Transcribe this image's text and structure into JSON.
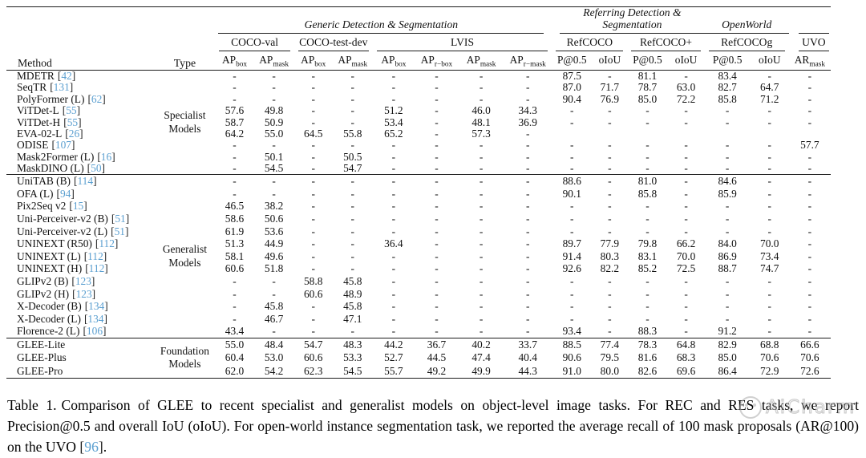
{
  "fmt": {
    "cite_open": "[",
    "cite_close": "]"
  },
  "colors": {
    "cite_link": "#5b9fd0",
    "rule": "#1c1c1c",
    "background": "#ffffff"
  },
  "table": {
    "header": {
      "method": "Method",
      "type": "Type",
      "groups": [
        {
          "label": "Generic Detection & Segmentation"
        },
        {
          "label": "Referring Detection & Segmentation"
        },
        {
          "label": "OpenWorld"
        }
      ],
      "datasets": [
        "COCO-val",
        "COCO-test-dev",
        "LVIS",
        "RefCOCO",
        "RefCOCO+",
        "RefCOCOg",
        "UVO"
      ],
      "metrics": [
        {
          "main": "AP",
          "sub": "box"
        },
        {
          "main": "AP",
          "sub": "mask"
        },
        {
          "main": "AP",
          "sub": "box"
        },
        {
          "main": "AP",
          "sub": "mask"
        },
        {
          "main": "AP",
          "sub": "box"
        },
        {
          "main": "AP",
          "sub": "r−box"
        },
        {
          "main": "AP",
          "sub": "mask"
        },
        {
          "main": "AP",
          "sub": "r−mask"
        },
        {
          "main": "P@0.5",
          "sub": ""
        },
        {
          "main": "oIoU",
          "sub": ""
        },
        {
          "main": "P@0.5",
          "sub": ""
        },
        {
          "main": "oIoU",
          "sub": ""
        },
        {
          "main": "P@0.5",
          "sub": ""
        },
        {
          "main": "oIoU",
          "sub": ""
        },
        {
          "main": "AR",
          "sub": "mask"
        }
      ]
    },
    "blocks": [
      {
        "type_label": "Specialist\nModels",
        "rows": [
          {
            "method": "MDETR",
            "cite": "42",
            "values": [
              "-",
              "-",
              "-",
              "-",
              "-",
              "-",
              "-",
              "-",
              "87.5",
              "-",
              "81.1",
              "-",
              "83.4",
              "-",
              "-"
            ]
          },
          {
            "method": "SeqTR",
            "cite": "131",
            "values": [
              "-",
              "-",
              "-",
              "-",
              "-",
              "-",
              "-",
              "-",
              "87.0",
              "71.7",
              "78.7",
              "63.0",
              "82.7",
              "64.7",
              "-"
            ]
          },
          {
            "method": "PolyFormer (L)",
            "cite": "62",
            "values": [
              "-",
              "-",
              "-",
              "-",
              "-",
              "-",
              "-",
              "-",
              "90.4",
              "76.9",
              "85.0",
              "72.2",
              "85.8",
              "71.2",
              "-"
            ]
          },
          {
            "method": "ViTDet-L",
            "cite": "55",
            "values": [
              "57.6",
              "49.8",
              "-",
              "-",
              "51.2",
              "-",
              "46.0",
              "34.3",
              "-",
              "-",
              "-",
              "-",
              "-",
              "-",
              "-"
            ]
          },
          {
            "method": "ViTDet-H",
            "cite": "55",
            "values": [
              "58.7",
              "50.9",
              "-",
              "-",
              "53.4",
              "-",
              "48.1",
              "36.9",
              "-",
              "-",
              "-",
              "-",
              "-",
              "-",
              "-"
            ]
          },
          {
            "method": "EVA-02-L",
            "cite": "26",
            "values": [
              "64.2",
              "55.0",
              "64.5",
              "55.8",
              "65.2",
              "-",
              "57.3",
              "-",
              "",
              "",
              "",
              "",
              "",
              "",
              ""
            ]
          },
          {
            "method": "ODISE",
            "cite": "107",
            "values": [
              "-",
              "-",
              "-",
              "-",
              "-",
              "-",
              "-",
              "-",
              "-",
              "-",
              "-",
              "-",
              "-",
              "-",
              "57.7"
            ]
          },
          {
            "method": "Mask2Former (L)",
            "cite": "16",
            "values": [
              "-",
              "50.1",
              "-",
              "50.5",
              "-",
              "-",
              "-",
              "-",
              "-",
              "-",
              "-",
              "-",
              "-",
              "-",
              "-"
            ]
          },
          {
            "method": "MaskDINO (L)",
            "cite": "50",
            "values": [
              "-",
              "54.5",
              "-",
              "54.7",
              "-",
              "-",
              "-",
              "-",
              "-",
              "-",
              "-",
              "-",
              "-",
              "-",
              "-"
            ]
          }
        ]
      },
      {
        "type_label": "Generalist\nModels",
        "rows": [
          {
            "method": "UniTAB (B)",
            "cite": "114",
            "values": [
              "-",
              "-",
              "-",
              "-",
              "-",
              "-",
              "-",
              "-",
              "88.6",
              "-",
              "81.0",
              "-",
              "84.6",
              "-",
              "-"
            ]
          },
          {
            "method": "OFA (L)",
            "cite": "94",
            "values": [
              "-",
              "-",
              "-",
              "-",
              "-",
              "-",
              "-",
              "-",
              "90.1",
              "-",
              "85.8",
              "-",
              "85.9",
              "-",
              "-"
            ]
          },
          {
            "method": "Pix2Seq v2",
            "cite": "15",
            "values": [
              "46.5",
              "38.2",
              "-",
              "-",
              "-",
              "-",
              "-",
              "-",
              "-",
              "-",
              "-",
              "-",
              "-",
              "-",
              "-"
            ]
          },
          {
            "method": "Uni-Perceiver-v2 (B)",
            "cite": "51",
            "values": [
              "58.6",
              "50.6",
              "-",
              "-",
              "-",
              "-",
              "-",
              "-",
              "-",
              "-",
              "-",
              "-",
              "-",
              "-",
              "-"
            ]
          },
          {
            "method": "Uni-Perceiver-v2 (L)",
            "cite": "51",
            "values": [
              "61.9",
              "53.6",
              "-",
              "-",
              "-",
              "-",
              "-",
              "-",
              "-",
              "-",
              "-",
              "-",
              "-",
              "-",
              "-"
            ]
          },
          {
            "method": "UNINEXT (R50)",
            "cite": "112",
            "values": [
              "51.3",
              "44.9",
              "-",
              "-",
              "36.4",
              "-",
              "-",
              "-",
              "89.7",
              "77.9",
              "79.8",
              "66.2",
              "84.0",
              "70.0",
              "-"
            ]
          },
          {
            "method": "UNINEXT (L)",
            "cite": "112",
            "values": [
              "58.1",
              "49.6",
              "-",
              "-",
              "-",
              "-",
              "-",
              "-",
              "91.4",
              "80.3",
              "83.1",
              "70.0",
              "86.9",
              "73.4",
              "-"
            ]
          },
          {
            "method": "UNINEXT (H)",
            "cite": "112",
            "values": [
              "60.6",
              "51.8",
              "-",
              "-",
              "-",
              "-",
              "-",
              "-",
              "92.6",
              "82.2",
              "85.2",
              "72.5",
              "88.7",
              "74.7",
              "-"
            ]
          },
          {
            "method": "GLIPv2 (B)",
            "cite": "123",
            "values": [
              "-",
              "-",
              "58.8",
              "45.8",
              "-",
              "-",
              "-",
              "-",
              "-",
              "-",
              "-",
              "-",
              "-",
              "-",
              "-"
            ]
          },
          {
            "method": "GLIPv2 (H)",
            "cite": "123",
            "values": [
              "-",
              "-",
              "60.6",
              "48.9",
              "-",
              "-",
              "-",
              "-",
              "-",
              "-",
              "-",
              "-",
              "-",
              "-",
              "-"
            ]
          },
          {
            "method": "X-Decoder (B)",
            "cite": "134",
            "values": [
              "-",
              "45.8",
              "-",
              "45.8",
              "-",
              "-",
              "-",
              "-",
              "-",
              "-",
              "-",
              "-",
              "-",
              "-",
              "-"
            ]
          },
          {
            "method": "X-Decoder (L)",
            "cite": "134",
            "values": [
              "-",
              "46.7",
              "-",
              "47.1",
              "-",
              "-",
              "-",
              "-",
              "-",
              "-",
              "-",
              "-",
              "-",
              "-",
              "-"
            ]
          },
          {
            "method": "Florence-2 (L)",
            "cite": "106",
            "values": [
              "43.4",
              "-",
              "-",
              "-",
              "-",
              "-",
              "-",
              "-",
              "93.4",
              "-",
              "88.3",
              "-",
              "91.2",
              "-",
              "-"
            ]
          }
        ]
      },
      {
        "type_label": "Foundation\nModels",
        "rows": [
          {
            "method": "GLEE-Lite",
            "cite": "",
            "values": [
              "55.0",
              "48.4",
              "54.7",
              "48.3",
              "44.2",
              "36.7",
              "40.2",
              "33.7",
              "88.5",
              "77.4",
              "78.3",
              "64.8",
              "82.9",
              "68.8",
              "66.6"
            ]
          },
          {
            "method": "GLEE-Plus",
            "cite": "",
            "values": [
              "60.4",
              "53.0",
              "60.6",
              "53.3",
              "52.7",
              "44.5",
              "47.4",
              "40.4",
              "90.6",
              "79.5",
              "81.6",
              "68.3",
              "85.0",
              "70.6",
              "70.6"
            ]
          },
          {
            "method": "GLEE-Pro",
            "cite": "",
            "values": [
              "62.0",
              "54.2",
              "62.3",
              "54.5",
              "55.7",
              "49.2",
              "49.9",
              "44.3",
              "91.0",
              "80.0",
              "82.6",
              "69.6",
              "86.4",
              "72.9",
              "72.6"
            ]
          }
        ]
      }
    ]
  },
  "caption": {
    "label": "Table 1.",
    "body": "Comparison of GLEE to recent specialist and generalist models on object-level image tasks. For REC and RES tasks, we report Precision@0.5 and overall IoU (oIoU). For open-world instance segmentation task, we reported the average recall of 100 mask proposals (AR@100) on the UVO ",
    "cite": "96",
    "after": "."
  },
  "watermark": {
    "text": "AiCharm"
  }
}
